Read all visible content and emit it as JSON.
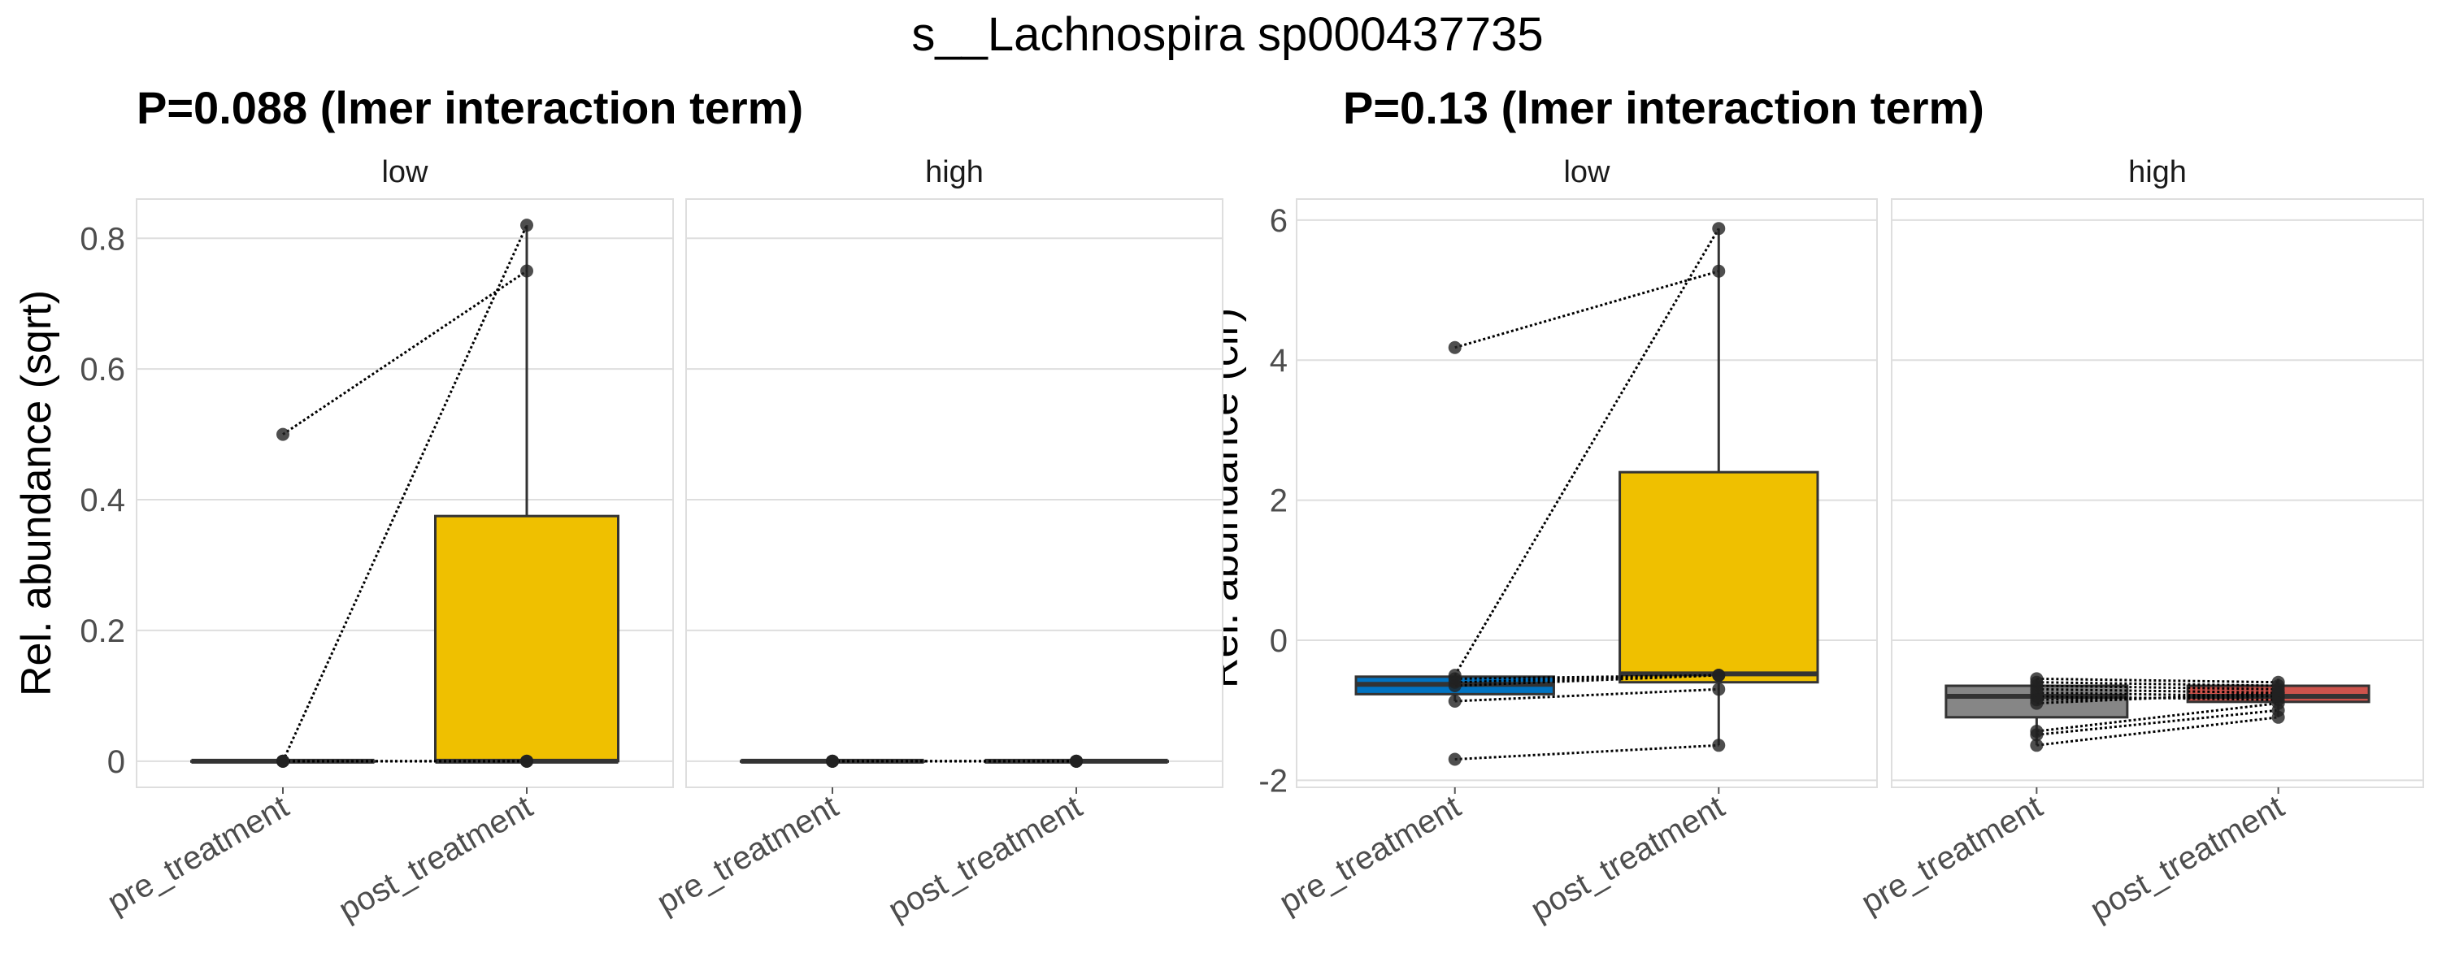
{
  "chart_data": {
    "title": "s__Lachnospira sp000437735",
    "colors": {
      "pre_low": "#0073C2",
      "post_low": "#EFC000",
      "pre_high": "#868686",
      "post_high": "#CD534C"
    },
    "plots": [
      {
        "subtitle": "P=0.088 (lmer interaction term)",
        "ylabel": "Rel. abundance (sqrt)",
        "ylim": [
          -0.04,
          0.86
        ],
        "yticks": [
          0,
          0.2,
          0.4,
          0.6,
          0.8
        ],
        "ytick_labels": [
          "0",
          "0.2",
          "0.4",
          "0.6",
          "0.8"
        ],
        "categories": [
          "pre_treatment",
          "post_treatment"
        ],
        "facets": [
          {
            "label": "low",
            "fill": [
              "#868686",
              "#EFC000"
            ],
            "boxes": [
              {
                "q1": 0,
                "median": 0,
                "q3": 0,
                "lo": 0,
                "hi": 0
              },
              {
                "q1": 0,
                "median": 0,
                "q3": 0.375,
                "lo": 0,
                "hi": 0.82
              }
            ],
            "pairs": [
              [
                0.5,
                0.75
              ],
              [
                0,
                0.82
              ],
              [
                0,
                0
              ],
              [
                0,
                0
              ],
              [
                0,
                0
              ]
            ]
          },
          {
            "label": "high",
            "fill": [
              "#868686",
              "#868686"
            ],
            "boxes": [
              {
                "q1": 0,
                "median": 0,
                "q3": 0,
                "lo": 0,
                "hi": 0
              },
              {
                "q1": 0,
                "median": 0,
                "q3": 0,
                "lo": 0,
                "hi": 0
              }
            ],
            "pairs": [
              [
                0,
                0
              ],
              [
                0,
                0
              ],
              [
                0,
                0
              ],
              [
                0,
                0
              ]
            ]
          }
        ]
      },
      {
        "subtitle": "P=0.13 (lmer interaction term)",
        "ylabel": "Rel. abundance (clr)",
        "ylim": [
          -2.1,
          6.3
        ],
        "yticks": [
          -2,
          0,
          2,
          4,
          6
        ],
        "ytick_labels": [
          "-2",
          "0",
          "2",
          "4",
          "6"
        ],
        "categories": [
          "pre_treatment",
          "post_treatment"
        ],
        "facets": [
          {
            "label": "low",
            "fill": [
              "#0073C2",
              "#EFC000"
            ],
            "boxes": [
              {
                "q1": -0.77,
                "median": -0.63,
                "q3": -0.52,
                "lo": -0.87,
                "hi": -0.5
              },
              {
                "q1": -0.6,
                "median": -0.48,
                "q3": 2.4,
                "lo": -1.5,
                "hi": 5.88
              }
            ],
            "pairs": [
              [
                4.18,
                5.27
              ],
              [
                -0.5,
                5.88
              ],
              [
                -0.55,
                -0.5
              ],
              [
                -0.6,
                -0.5
              ],
              [
                -0.65,
                -0.5
              ],
              [
                -0.87,
                -0.7
              ],
              [
                -1.7,
                -1.5
              ]
            ]
          },
          {
            "label": "high",
            "fill": [
              "#868686",
              "#CD534C"
            ],
            "boxes": [
              {
                "q1": -1.1,
                "median": -0.8,
                "q3": -0.65,
                "lo": -1.5,
                "hi": -0.55
              },
              {
                "q1": -0.88,
                "median": -0.8,
                "q3": -0.65,
                "lo": -1.1,
                "hi": -0.55
              }
            ],
            "pairs": [
              [
                -0.55,
                -0.6
              ],
              [
                -0.6,
                -0.65
              ],
              [
                -0.65,
                -0.7
              ],
              [
                -0.7,
                -0.75
              ],
              [
                -0.75,
                -0.8
              ],
              [
                -0.8,
                -0.85
              ],
              [
                -0.85,
                -0.8
              ],
              [
                -0.9,
                -0.75
              ],
              [
                -1.3,
                -0.9
              ],
              [
                -1.35,
                -1.0
              ],
              [
                -1.5,
                -1.1
              ]
            ]
          }
        ]
      }
    ]
  }
}
